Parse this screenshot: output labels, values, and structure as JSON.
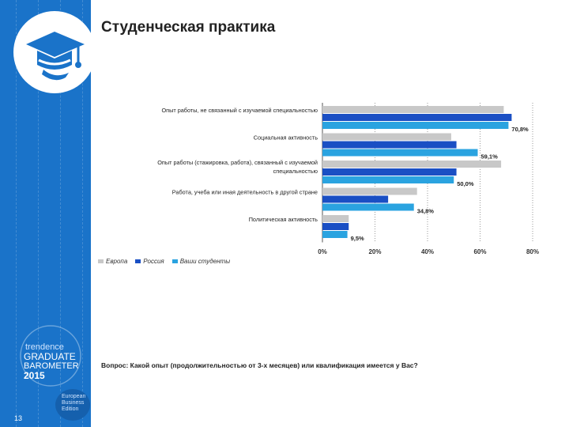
{
  "page": {
    "title": "Студенческая практика",
    "question": "Вопрос: Какой опыт (продолжительностью от 3-х месяцев) или квалификация имеется у Вас?",
    "page_number": "13",
    "branding": {
      "line1": "trendence",
      "line2": "GRADUATE",
      "line3": "BAROMETER",
      "year": "2015",
      "sub": [
        "European",
        "Business",
        "Edition"
      ]
    }
  },
  "colors": {
    "sidebar": "#1a73c9",
    "europe": "#c8c8c8",
    "russia": "#1a4fc4",
    "students": "#2aa3e0"
  },
  "chart_data": {
    "type": "bar",
    "orientation": "horizontal",
    "categories": [
      "Опыт работы, не связанный с изучаемой специальностью",
      "Социальная активность",
      "Опыт работы (стажировка, работа), связанный с изучаемой специальностью",
      "Работа, учеба или иная деятельность в другой стране",
      "Политическая активность"
    ],
    "category_lines": [
      [
        "Опыт работы, не связанный с изучаемой специальностью"
      ],
      [
        "Социальная активность"
      ],
      [
        "Опыт работы (стажировка, работа), связанный с изучаемой",
        "специальностью"
      ],
      [
        "Работа, учеба или иная деятельность в другой стране"
      ],
      [
        "Политическая активность"
      ]
    ],
    "series": [
      {
        "name": "Европа",
        "values": [
          69,
          49,
          68,
          36,
          10
        ]
      },
      {
        "name": "Россия",
        "values": [
          72,
          51,
          51,
          25,
          10
        ]
      },
      {
        "name": "Ваши студенты",
        "values": [
          70.8,
          59.1,
          50.0,
          34.8,
          9.5
        ]
      }
    ],
    "data_labels": [
      "70,8%",
      "59,1%",
      "50,0%",
      "34,8%",
      "9,5%"
    ],
    "x_ticks": [
      "0%",
      "20%",
      "40%",
      "60%",
      "80%"
    ],
    "xlim": [
      0,
      80
    ],
    "grid": "vertical dashed",
    "legend_position": "bottom-left"
  }
}
